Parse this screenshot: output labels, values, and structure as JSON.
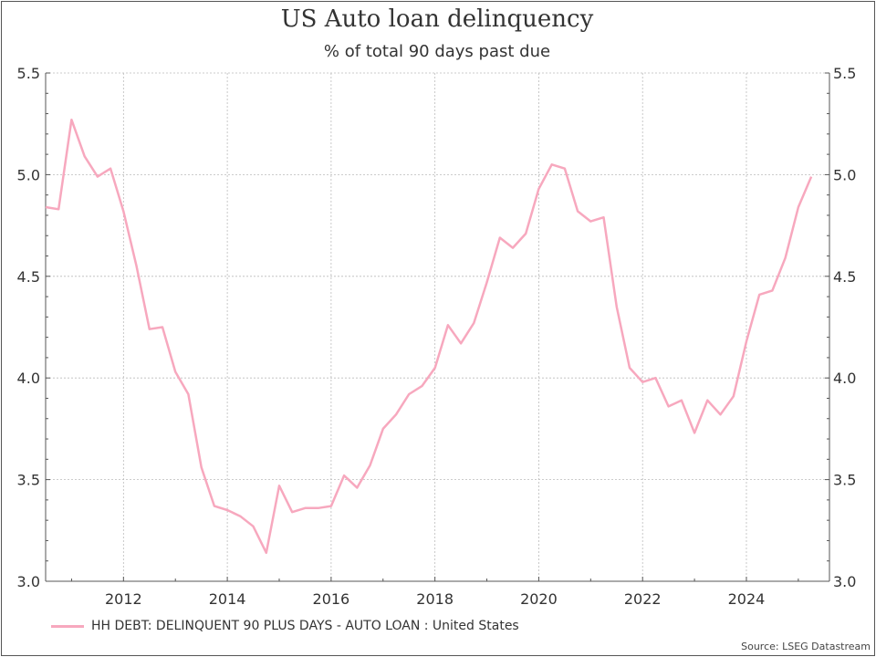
{
  "chart_data": {
    "type": "line",
    "title": "US Auto loan delinquency",
    "subtitle": "% of total 90 days past due",
    "ylim": [
      3.0,
      5.5
    ],
    "xlim": [
      2010.5,
      2025.6
    ],
    "yticks": [
      3.0,
      3.5,
      4.0,
      4.5,
      5.0,
      5.5
    ],
    "ytick_labels": [
      "3.0",
      "3.5",
      "4.0",
      "4.5",
      "5.0",
      "5.5"
    ],
    "xticks": [
      2012,
      2014,
      2016,
      2018,
      2020,
      2022,
      2024
    ],
    "xtick_labels": [
      "2012",
      "2014",
      "2016",
      "2018",
      "2020",
      "2022",
      "2024"
    ],
    "grid": true,
    "secondary_y_axis": true,
    "legend_position": "bottom-left",
    "series": [
      {
        "name": "HH DEBT: DELINQUENT 90 PLUS DAYS - AUTO LOAN : United States",
        "color": "#F7A8BE",
        "x": [
          2010.5,
          2010.75,
          2011.0,
          2011.25,
          2011.5,
          2011.75,
          2012.0,
          2012.25,
          2012.5,
          2012.75,
          2013.0,
          2013.25,
          2013.5,
          2013.75,
          2014.0,
          2014.25,
          2014.5,
          2014.75,
          2015.0,
          2015.25,
          2015.5,
          2015.75,
          2016.0,
          2016.25,
          2016.5,
          2016.75,
          2017.0,
          2017.25,
          2017.5,
          2017.75,
          2018.0,
          2018.25,
          2018.5,
          2018.75,
          2019.0,
          2019.25,
          2019.5,
          2019.75,
          2020.0,
          2020.25,
          2020.5,
          2020.75,
          2021.0,
          2021.25,
          2021.5,
          2021.75,
          2022.0,
          2022.25,
          2022.5,
          2022.75,
          2023.0,
          2023.25,
          2023.5,
          2023.75,
          2024.0,
          2024.25,
          2024.5,
          2024.75,
          2025.0,
          2025.25
        ],
        "values": [
          4.84,
          4.83,
          5.27,
          5.09,
          4.99,
          5.03,
          4.82,
          4.55,
          4.24,
          4.25,
          4.03,
          3.92,
          3.56,
          3.37,
          3.35,
          3.32,
          3.27,
          3.14,
          3.47,
          3.34,
          3.36,
          3.36,
          3.37,
          3.52,
          3.46,
          3.57,
          3.75,
          3.82,
          3.92,
          3.96,
          4.05,
          4.26,
          4.17,
          4.27,
          4.47,
          4.69,
          4.64,
          4.71,
          4.93,
          5.05,
          5.03,
          4.82,
          4.77,
          4.79,
          4.35,
          4.05,
          3.98,
          4.0,
          3.86,
          3.89,
          3.73,
          3.89,
          3.82,
          3.91,
          4.18,
          4.41,
          4.43,
          4.59,
          4.84,
          4.99
        ]
      }
    ]
  },
  "source": "Source: LSEG Datastream"
}
